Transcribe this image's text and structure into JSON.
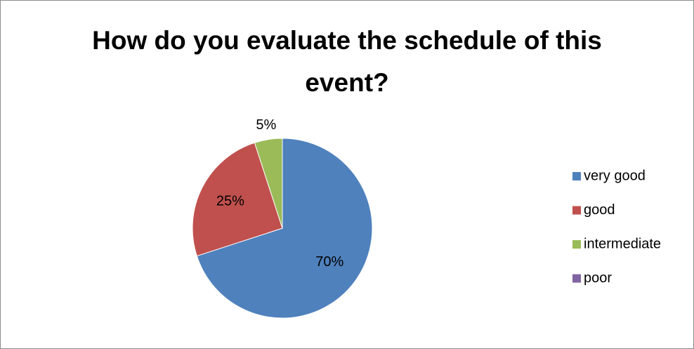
{
  "chart_data": {
    "type": "pie",
    "title": "How do you evaluate the schedule of this event?",
    "categories": [
      "very good",
      "good",
      "intermediate",
      "poor"
    ],
    "values": [
      70,
      25,
      5,
      0
    ],
    "value_labels": [
      "70%",
      "25%",
      "5%",
      null
    ],
    "colors": [
      "#4f81bd",
      "#c0504d",
      "#9bbb59",
      "#8064a2"
    ],
    "legend": "right"
  }
}
